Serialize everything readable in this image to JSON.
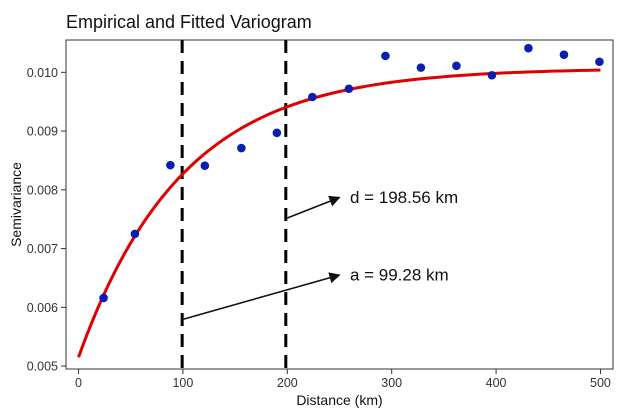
{
  "chart_data": {
    "type": "scatter",
    "title": "Empirical and Fitted Variogram",
    "xlabel": "Distance (km)",
    "ylabel": "Semivariance",
    "xlim": [
      -12,
      512
    ],
    "ylim": [
      0.00495,
      0.01055
    ],
    "x_ticks": [
      0,
      100,
      200,
      300,
      400,
      500
    ],
    "x_tick_labels": [
      "0",
      "100",
      "200",
      "300",
      "400",
      "500"
    ],
    "y_ticks": [
      0.005,
      0.006,
      0.007,
      0.008,
      0.009,
      0.01
    ],
    "y_tick_labels": [
      "0.005",
      "0.006",
      "0.007",
      "0.008",
      "0.009",
      "0.010"
    ],
    "grid": false,
    "series": [
      {
        "name": "Empirical",
        "marker_color": "#0a1fb0",
        "points": [
          {
            "x": 24,
            "y": 0.00616
          },
          {
            "x": 54,
            "y": 0.00725
          },
          {
            "x": 88,
            "y": 0.00842
          },
          {
            "x": 121,
            "y": 0.00841
          },
          {
            "x": 156,
            "y": 0.00871
          },
          {
            "x": 190,
            "y": 0.00897
          },
          {
            "x": 224,
            "y": 0.00958
          },
          {
            "x": 259,
            "y": 0.00972
          },
          {
            "x": 294,
            "y": 0.01028
          },
          {
            "x": 328,
            "y": 0.01008
          },
          {
            "x": 362,
            "y": 0.01011
          },
          {
            "x": 396,
            "y": 0.00995
          },
          {
            "x": 431,
            "y": 0.01041
          },
          {
            "x": 465,
            "y": 0.0103
          },
          {
            "x": 499,
            "y": 0.01018
          }
        ]
      },
      {
        "name": "Fitted",
        "line_color": "#e00000",
        "model": "exponential",
        "nugget": 0.00515,
        "sill": 0.01007,
        "range_a": 99.28,
        "x_range": [
          0,
          500
        ]
      }
    ],
    "vlines": [
      {
        "x": 99.28,
        "style": "dashed"
      },
      {
        "x": 198.56,
        "style": "dashed"
      }
    ],
    "annotations": [
      {
        "text": "d = 198.56 km",
        "arrow_from": [
          200,
          0.00752
        ],
        "arrow_to": [
          250,
          0.00787
        ],
        "text_at": [
          260,
          0.00788
        ]
      },
      {
        "text": "a = 99.28 km",
        "arrow_from": [
          99,
          0.00579
        ],
        "arrow_to": [
          250,
          0.00655
        ],
        "text_at": [
          260,
          0.00656
        ]
      }
    ]
  }
}
